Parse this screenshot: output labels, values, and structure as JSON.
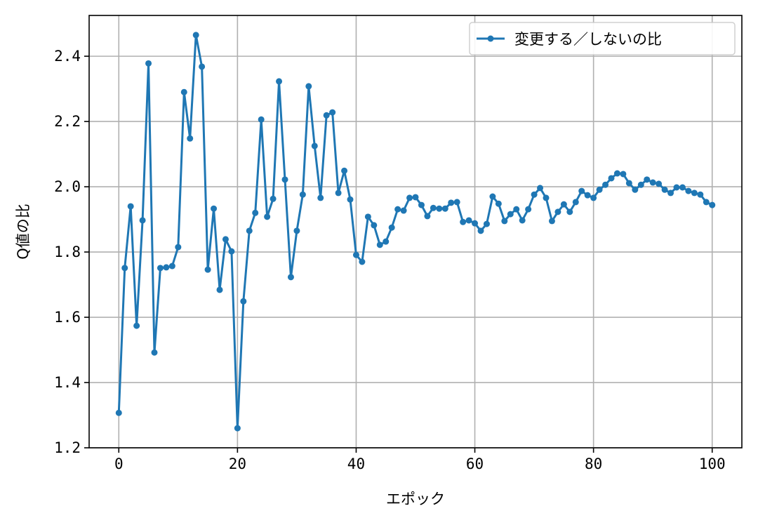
{
  "chart_data": {
    "type": "line",
    "xlabel": "エポック",
    "ylabel": "Q値の比",
    "x": [
      0,
      1,
      2,
      3,
      4,
      5,
      6,
      7,
      8,
      9,
      10,
      11,
      12,
      13,
      14,
      15,
      16,
      17,
      18,
      19,
      20,
      21,
      22,
      23,
      24,
      25,
      26,
      27,
      28,
      29,
      30,
      31,
      32,
      33,
      34,
      35,
      36,
      37,
      38,
      39,
      40,
      41,
      42,
      43,
      44,
      45,
      46,
      47,
      48,
      49,
      50,
      51,
      52,
      53,
      54,
      55,
      56,
      57,
      58,
      59,
      60,
      61,
      62,
      63,
      64,
      65,
      66,
      67,
      68,
      69,
      70,
      71,
      72,
      73,
      74,
      75,
      76,
      77,
      78,
      79,
      80,
      81,
      82,
      83,
      84,
      85,
      86,
      87,
      88,
      89,
      90,
      91,
      92,
      93,
      94,
      95,
      96,
      97,
      98,
      99,
      100
    ],
    "series": [
      {
        "name": "変更する／しないの比",
        "color": "#1f77b4",
        "values": [
          1.307,
          1.751,
          1.94,
          1.574,
          1.897,
          2.378,
          1.492,
          1.751,
          1.753,
          1.757,
          1.815,
          2.29,
          2.148,
          2.465,
          2.368,
          1.746,
          1.933,
          1.684,
          1.839,
          1.802,
          1.26,
          1.649,
          1.865,
          1.92,
          2.206,
          1.908,
          1.963,
          2.323,
          2.022,
          1.723,
          1.865,
          1.976,
          2.308,
          2.125,
          1.966,
          2.219,
          2.228,
          1.981,
          2.049,
          1.961,
          1.791,
          1.77,
          1.908,
          1.882,
          1.822,
          1.832,
          1.875,
          1.931,
          1.927,
          1.966,
          1.968,
          1.944,
          1.91,
          1.935,
          1.933,
          1.933,
          1.951,
          1.953,
          1.892,
          1.897,
          1.888,
          1.865,
          1.886,
          1.97,
          1.948,
          1.895,
          1.916,
          1.931,
          1.897,
          1.931,
          1.976,
          1.996,
          1.966,
          1.895,
          1.923,
          1.946,
          1.923,
          1.953,
          1.987,
          1.974,
          1.966,
          1.991,
          2.006,
          2.026,
          2.041,
          2.039,
          2.011,
          1.991,
          2.006,
          2.022,
          2.013,
          2.009,
          1.991,
          1.981,
          1.998,
          1.998,
          1.987,
          1.981,
          1.976,
          1.953,
          1.944
        ]
      }
    ],
    "xlim": [
      -5,
      105
    ],
    "xticks": [
      0,
      20,
      40,
      60,
      80,
      100
    ],
    "ylim": [
      1.2,
      2.525
    ],
    "yticks": [
      1.2,
      1.4,
      1.6,
      1.8,
      {
        "value": 2.0,
        "label": "2.0"
      },
      2.2,
      2.4
    ],
    "grid": true,
    "legend": "upper right"
  }
}
